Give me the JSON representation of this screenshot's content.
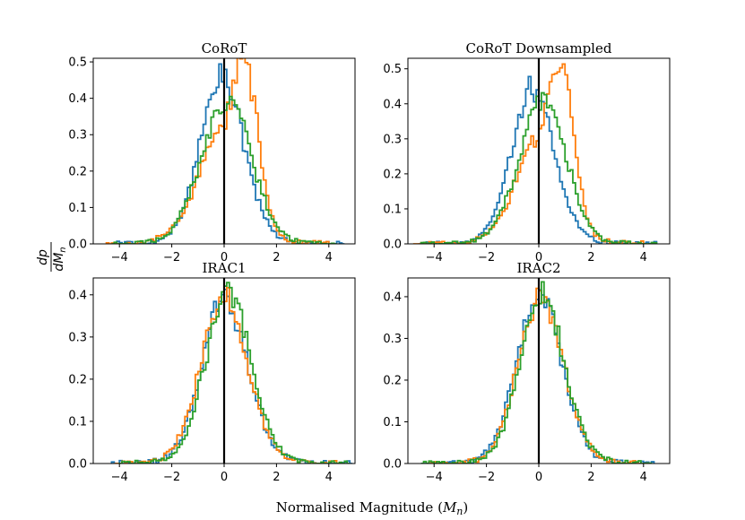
{
  "figure": {
    "xlabel_text": "Normalised Magnitude (",
    "xlabel_symbol": "M",
    "xlabel_sub": "n",
    "xlabel_close": ")",
    "ylabel_num": "dp",
    "ylabel_den": "dM",
    "ylabel_den_sub": "n"
  },
  "colors": {
    "series1": "#1f77b4",
    "series2": "#ff7f0e",
    "series3": "#2ca02c",
    "zero_line": "#000000"
  },
  "chart_data": [
    {
      "type": "histogram-step",
      "title": "CoRoT",
      "xlim": [
        -5,
        5
      ],
      "ylim": [
        0,
        0.51
      ],
      "xticks": [
        -4,
        -2,
        0,
        2,
        4
      ],
      "xtick_labels": [
        "−4",
        "−2",
        "0",
        "2",
        "4"
      ],
      "yticks": [
        0,
        0.1,
        0.2,
        0.3,
        0.4,
        0.5
      ],
      "ytick_labels": [
        "0.0",
        "0.1",
        "0.2",
        "0.3",
        "0.4",
        "0.5"
      ],
      "vline_x": 0,
      "series": [
        {
          "name": "series1",
          "shape": {
            "center": -0.1,
            "sd_left": 0.82,
            "sd_right": 0.85,
            "peak": 0.44,
            "xmin": -4.3,
            "xmax": 4.6
          }
        },
        {
          "name": "series2",
          "shape": {
            "center": 0.75,
            "sd_left": 1.25,
            "sd_right": 0.55,
            "peak": 0.47,
            "xmin": -4.5,
            "xmax": 4.0,
            "dip_center": 0.0,
            "dip_depth": 0.09
          }
        },
        {
          "name": "series3",
          "shape": {
            "center": 0.15,
            "sd_left": 1.0,
            "sd_right": 0.9,
            "peak": 0.38,
            "xmin": -4.3,
            "xmax": 4.3
          }
        }
      ]
    },
    {
      "type": "histogram-step",
      "title": "CoRoT Downsampled",
      "xlim": [
        -5,
        5
      ],
      "ylim": [
        0,
        0.53
      ],
      "xticks": [
        -4,
        -2,
        0,
        2,
        4
      ],
      "xtick_labels": [
        "−4",
        "−2",
        "0",
        "2",
        "4"
      ],
      "yticks": [
        0,
        0.1,
        0.2,
        0.3,
        0.4,
        0.5
      ],
      "ytick_labels": [
        "0.0",
        "0.1",
        "0.2",
        "0.3",
        "0.4",
        "0.5"
      ],
      "vline_x": 0,
      "series": [
        {
          "name": "series1",
          "shape": {
            "center": -0.25,
            "sd_left": 0.8,
            "sd_right": 0.85,
            "peak": 0.42,
            "xmin": -4.6,
            "xmax": 4.5
          }
        },
        {
          "name": "series2",
          "shape": {
            "center": 0.85,
            "sd_left": 1.2,
            "sd_right": 0.5,
            "peak": 0.49,
            "xmin": -4.8,
            "xmax": 4.0,
            "dip_center": 0.05,
            "dip_depth": 0.08
          }
        },
        {
          "name": "series3",
          "shape": {
            "center": 0.2,
            "sd_left": 0.95,
            "sd_right": 0.85,
            "peak": 0.39,
            "xmin": -4.5,
            "xmax": 4.5
          }
        }
      ]
    },
    {
      "type": "histogram-step",
      "title": "IRAC1",
      "xlim": [
        -5,
        5
      ],
      "ylim": [
        0,
        0.44
      ],
      "xticks": [
        -4,
        -2,
        0,
        2,
        4
      ],
      "xtick_labels": [
        "−4",
        "−2",
        "0",
        "2",
        "4"
      ],
      "yticks": [
        0,
        0.1,
        0.2,
        0.3,
        0.4
      ],
      "ytick_labels": [
        "0.0",
        "0.1",
        "0.2",
        "0.3",
        "0.4"
      ],
      "vline_x": 0,
      "series": [
        {
          "name": "series1",
          "shape": {
            "center": 0.0,
            "sd_left": 0.85,
            "sd_right": 0.9,
            "peak": 0.37,
            "xmin": -4.3,
            "xmax": 4.9
          }
        },
        {
          "name": "series2",
          "shape": {
            "center": 0.0,
            "sd_left": 0.88,
            "sd_right": 0.9,
            "peak": 0.38,
            "xmin": -4.2,
            "xmax": 4.5
          }
        },
        {
          "name": "series3",
          "shape": {
            "center": 0.15,
            "sd_left": 0.85,
            "sd_right": 0.88,
            "peak": 0.39,
            "xmin": -4.0,
            "xmax": 4.8
          }
        }
      ]
    },
    {
      "type": "histogram-step",
      "title": "IRAC2",
      "xlim": [
        -5,
        5
      ],
      "ylim": [
        0,
        0.445
      ],
      "xticks": [
        -4,
        -2,
        0,
        2,
        4
      ],
      "xtick_labels": [
        "−4",
        "−2",
        "0",
        "2",
        "4"
      ],
      "yticks": [
        0,
        0.1,
        0.2,
        0.3,
        0.4
      ],
      "ytick_labels": [
        "0.0",
        "0.1",
        "0.2",
        "0.3",
        "0.4"
      ],
      "vline_x": 0,
      "series": [
        {
          "name": "series1",
          "shape": {
            "center": 0.0,
            "sd_left": 0.85,
            "sd_right": 0.88,
            "peak": 0.38,
            "xmin": -4.5,
            "xmax": 4.4
          }
        },
        {
          "name": "series2",
          "shape": {
            "center": 0.05,
            "sd_left": 0.85,
            "sd_right": 0.9,
            "peak": 0.37,
            "xmin": -4.2,
            "xmax": 4.2
          }
        },
        {
          "name": "series3",
          "shape": {
            "center": 0.1,
            "sd_left": 0.82,
            "sd_right": 0.88,
            "peak": 0.38,
            "xmin": -4.5,
            "xmax": 4.3
          }
        }
      ]
    }
  ]
}
